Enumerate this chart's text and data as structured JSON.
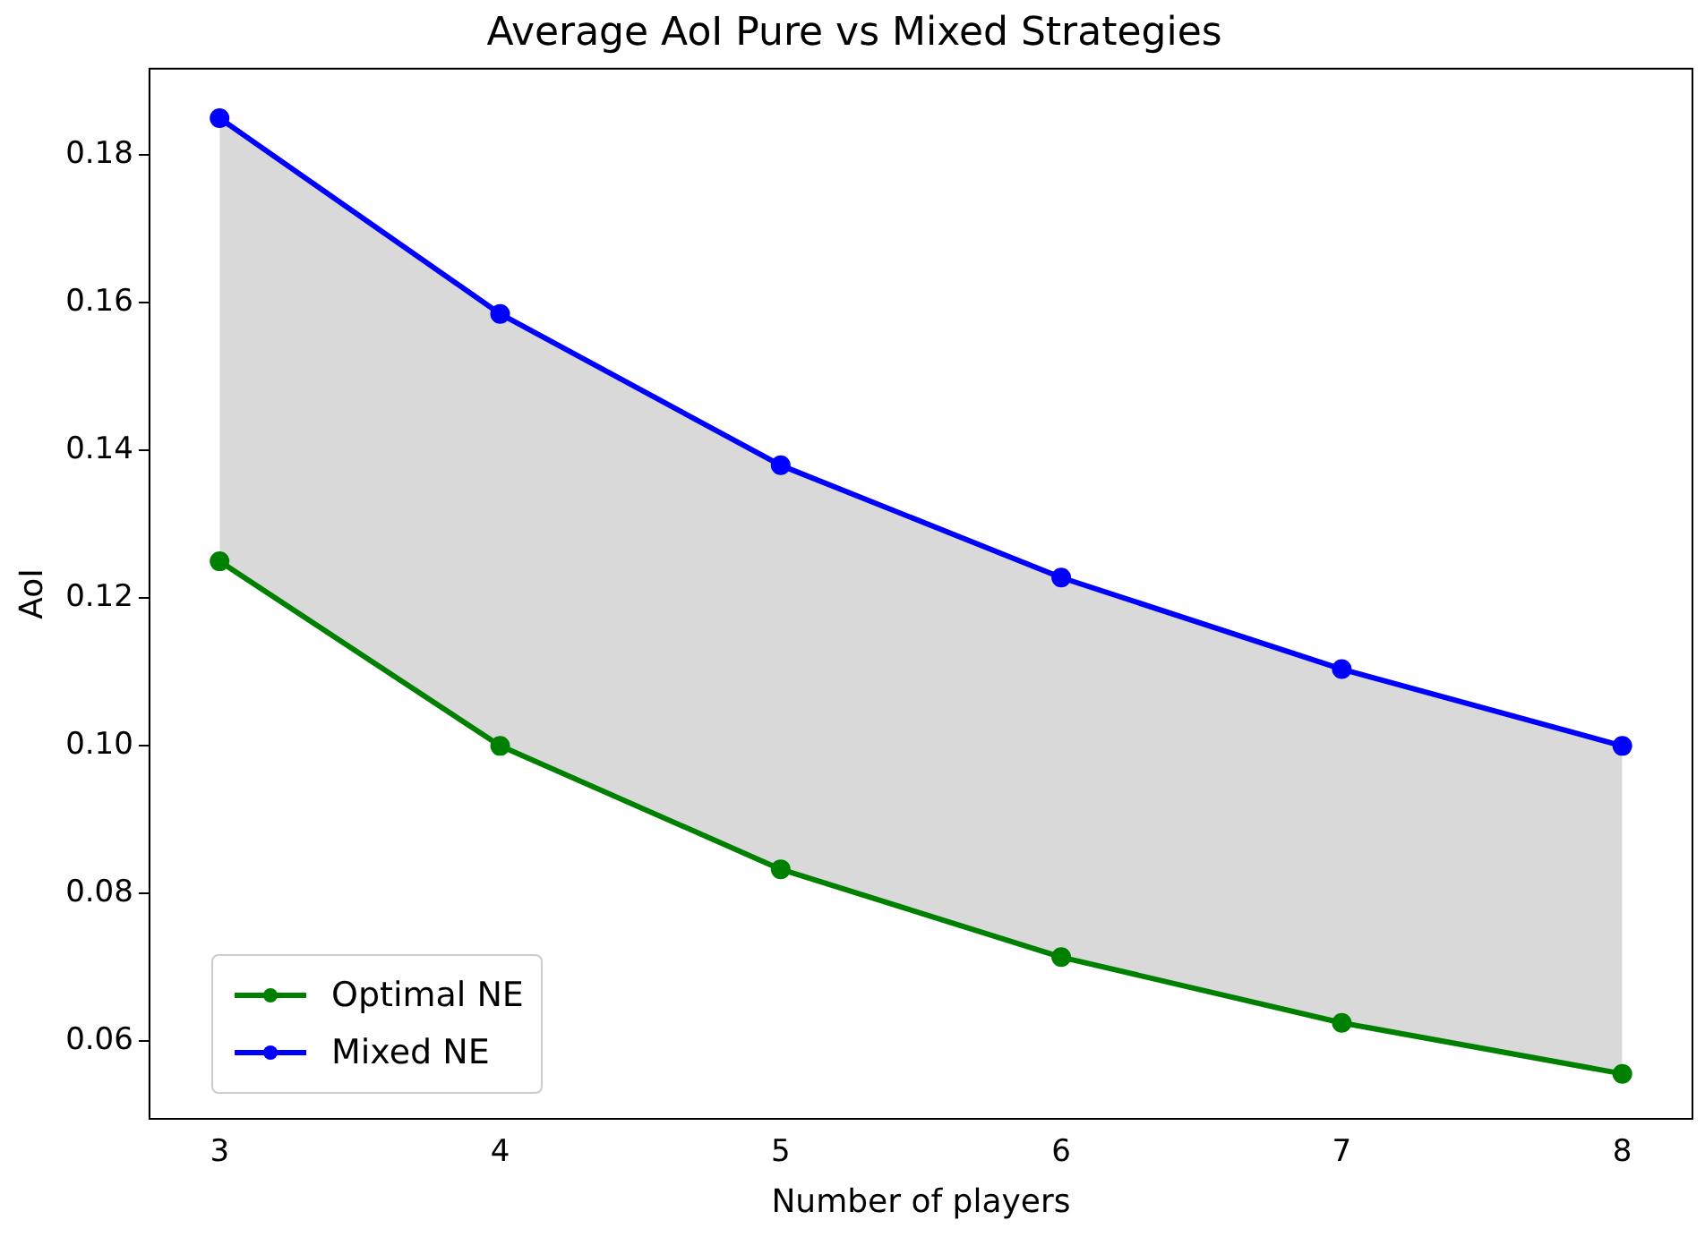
{
  "chart_data": {
    "type": "line",
    "title": "Average AoI Pure vs Mixed Strategies",
    "xlabel": "Number of players",
    "ylabel": "AoI",
    "x": [
      3,
      4,
      5,
      6,
      7,
      8
    ],
    "series": [
      {
        "name": "Optimal NE",
        "color": "#008000",
        "values": [
          0.125,
          0.1,
          0.0833,
          0.0714,
          0.0625,
          0.0556
        ]
      },
      {
        "name": "Mixed NE",
        "color": "#0000ff",
        "values": [
          0.185,
          0.1585,
          0.138,
          0.1228,
          0.1104,
          0.1
        ],
        "lower": [
          0.125,
          0.1,
          0.0833,
          0.0714,
          0.0625,
          0.0556
        ],
        "upper": [
          0.185,
          0.1585,
          0.138,
          0.1228,
          0.1104,
          0.1
        ]
      }
    ],
    "xlim": [
      2.75,
      8.25
    ],
    "xticks": [
      3,
      4,
      5,
      6,
      7,
      8
    ],
    "ylim": [
      0.0495,
      0.1917
    ],
    "yticks": [
      {
        "value": 0.06,
        "label": "0.06"
      },
      {
        "value": 0.08,
        "label": "0.08"
      },
      {
        "value": 0.1,
        "label": "0.10"
      },
      {
        "value": 0.12,
        "label": "0.12"
      },
      {
        "value": 0.14,
        "label": "0.14"
      },
      {
        "value": 0.16,
        "label": "0.16"
      },
      {
        "value": 0.18,
        "label": "0.18"
      }
    ],
    "grid": false,
    "legend": "bottom left",
    "marker": "circle",
    "line_style": "solid"
  }
}
